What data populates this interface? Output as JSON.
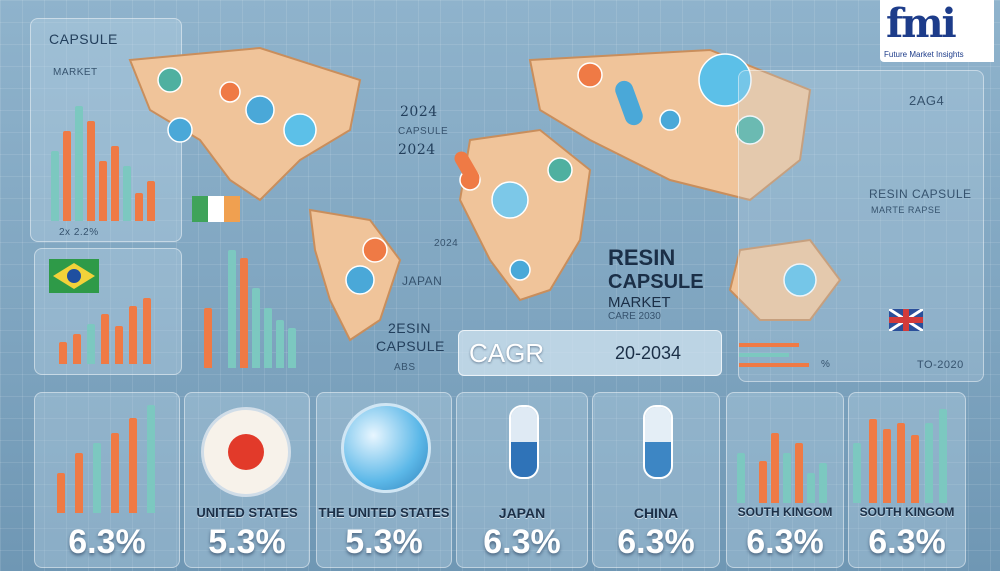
{
  "logo": {
    "mark": "fmi",
    "subtitle": "Future Market Insights"
  },
  "top_left": {
    "title": "CAPSULE",
    "subtitle": "MARKET",
    "footer": "2x 2.2%"
  },
  "center_text": {
    "year_a": "2024",
    "label": "CAPSULE",
    "year_b": "2024"
  },
  "left_mid": {
    "year": "2024",
    "country": "JAPAN",
    "resin": "2ESIN",
    "capsule": "CAPSULE",
    "small": "ABS"
  },
  "headline": {
    "line1": "RESIN",
    "line2": "CAPSULE",
    "line3": "MARKET",
    "line4": "CARE 2030"
  },
  "cagr": {
    "label": "CAGR",
    "range": "20-2034"
  },
  "right_panel": {
    "year": "2AG4",
    "title": "RESIN CAPSULE",
    "sub": "MARTE RAPSE",
    "pct": "%",
    "footer": "TO-2020"
  },
  "cards": [
    {
      "name": "",
      "value": "6.3%"
    },
    {
      "name": "UNITED STATES",
      "value": "5.3%"
    },
    {
      "name": "THE UNITED STATES",
      "value": "5.3%"
    },
    {
      "name": "JAPAN",
      "value": "6.3%"
    },
    {
      "name": "CHINA",
      "value": "6.3%"
    },
    {
      "name": "SOUTH KINGOM",
      "value": "6.3%"
    },
    {
      "name": "SOUTH KINGOM",
      "value": "6.3%"
    }
  ],
  "colors": {
    "accent_orange": "#ef7a45",
    "accent_teal": "#7cc8c0",
    "background": "#8fb3cc"
  }
}
